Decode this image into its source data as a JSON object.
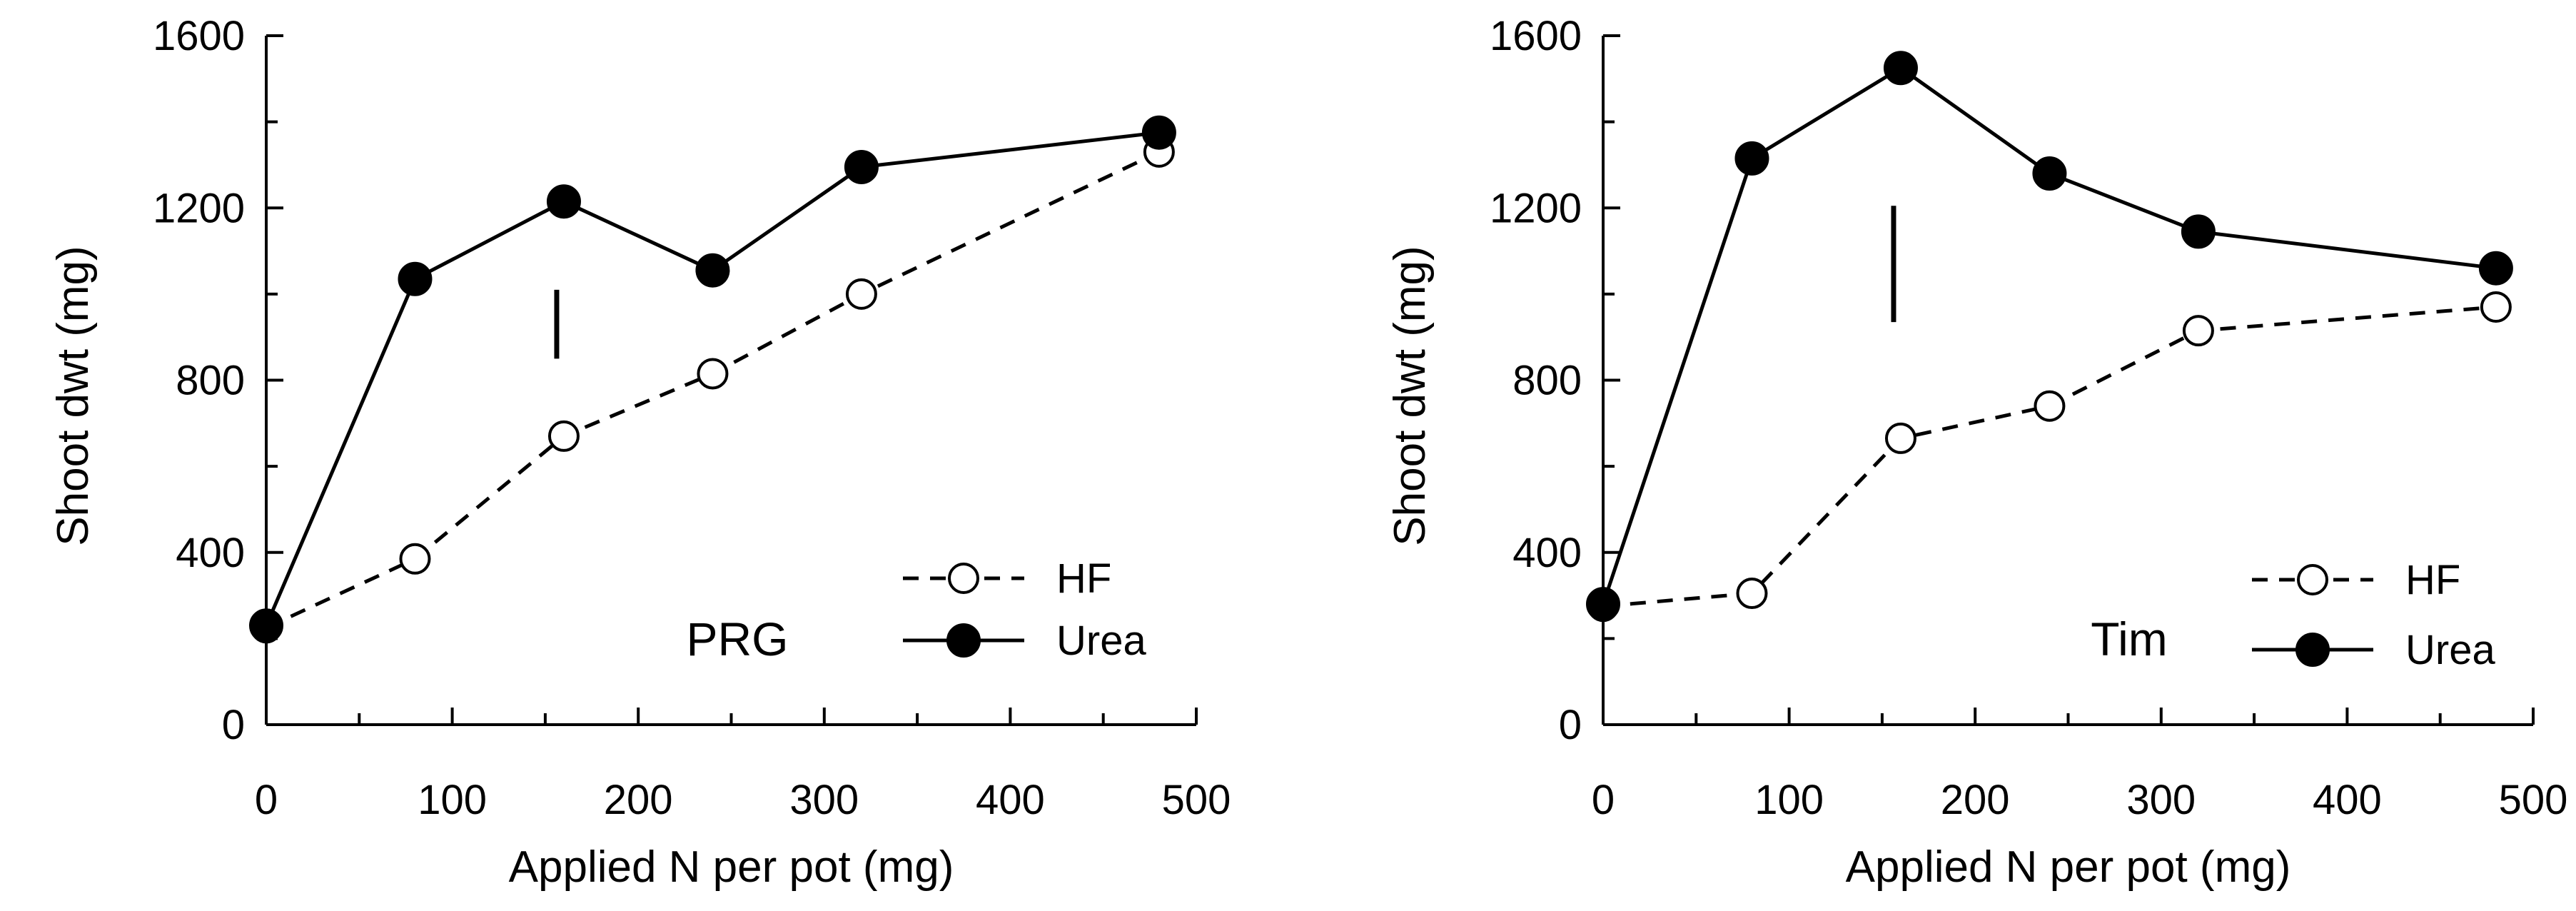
{
  "chart_data": [
    {
      "type": "line",
      "panel_label": "PRG",
      "xlabel": "Applied N per pot (mg)",
      "ylabel": "Shoot dwt (mg)",
      "xlim": [
        0,
        500
      ],
      "ylim": [
        0,
        1600
      ],
      "xticks": [
        0,
        100,
        200,
        300,
        400,
        500
      ],
      "yticks": [
        0,
        400,
        800,
        1200,
        1600
      ],
      "x": [
        0,
        80,
        160,
        240,
        320,
        480
      ],
      "series": [
        {
          "name": "HF",
          "style": "dashed",
          "marker": "open-circle",
          "values": [
            225,
            385,
            670,
            815,
            1000,
            1330
          ]
        },
        {
          "name": "Urea",
          "style": "solid",
          "marker": "filled-circle",
          "values": [
            230,
            1035,
            1215,
            1055,
            1295,
            1375
          ]
        }
      ],
      "error_bar": {
        "x": 160,
        "low": 850,
        "high": 1010
      },
      "legend": "bottom-right"
    },
    {
      "type": "line",
      "panel_label": "Tim",
      "xlabel": "Applied N per pot (mg)",
      "ylabel": "Shoot dwt (mg)",
      "xlim": [
        0,
        500
      ],
      "ylim": [
        0,
        1600
      ],
      "xticks": [
        0,
        100,
        200,
        300,
        400,
        500
      ],
      "yticks": [
        0,
        400,
        800,
        1200,
        1600
      ],
      "x": [
        0,
        80,
        160,
        240,
        320,
        480
      ],
      "series": [
        {
          "name": "HF",
          "style": "dashed",
          "marker": "open-circle",
          "values": [
            275,
            305,
            665,
            740,
            915,
            970
          ]
        },
        {
          "name": "Urea",
          "style": "solid",
          "marker": "filled-circle",
          "values": [
            280,
            1315,
            1525,
            1280,
            1145,
            1060
          ]
        }
      ],
      "error_bar": {
        "x": 160,
        "low": 935,
        "high": 1205
      },
      "legend": "bottom-right"
    }
  ]
}
